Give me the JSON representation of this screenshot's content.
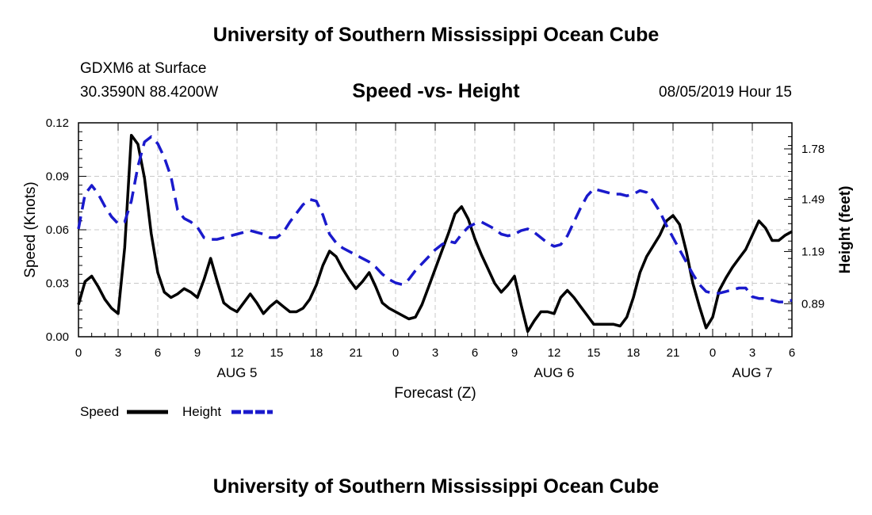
{
  "header": {
    "top_title": "University of Southern Mississippi Ocean Cube",
    "station": "GDXM6 at Surface",
    "coords": "30.3590N 88.4200W",
    "date": "08/05/2019 Hour 15",
    "bottom_title": "University of Southern Mississippi Ocean Cube"
  },
  "legend": {
    "speed_label": "Speed",
    "height_label": "Height"
  },
  "colors": {
    "speed": "#000000",
    "height": "#1a1acc",
    "grid": "#c8c8c8"
  },
  "chart_data": {
    "type": "line",
    "title": "Speed -vs- Height",
    "xlabel": "Forecast (Z)",
    "ylabel": "Speed (Knots)",
    "y2label": "Height (feet)",
    "xlim": [
      0,
      54
    ],
    "ylim": [
      0,
      0.12
    ],
    "y2lim": [
      0.7,
      1.93
    ],
    "x_ticks": [
      0,
      3,
      6,
      9,
      12,
      15,
      18,
      21,
      24,
      27,
      30,
      33,
      36,
      39,
      42,
      45,
      48,
      51,
      54
    ],
    "x_tick_labels": [
      "0",
      "3",
      "6",
      "9",
      "12",
      "15",
      "18",
      "21",
      "0",
      "3",
      "6",
      "9",
      "12",
      "15",
      "18",
      "21",
      "0",
      "3",
      "6"
    ],
    "y_ticks": [
      0.0,
      0.03,
      0.06,
      0.09,
      0.12
    ],
    "y_tick_labels": [
      "0.00",
      "0.03",
      "0.06",
      "0.09",
      "0.12"
    ],
    "y2_ticks": [
      0.89,
      1.19,
      1.49,
      1.78
    ],
    "y2_tick_labels": [
      "0.89",
      "1.19",
      "1.49",
      "1.78"
    ],
    "day_labels": [
      {
        "x": 12,
        "label": "AUG 5"
      },
      {
        "x": 36,
        "label": "AUG 6"
      },
      {
        "x": 51,
        "label": "AUG 7"
      }
    ],
    "series": [
      {
        "name": "Speed",
        "axis": "left",
        "style": "solid",
        "x": [
          0,
          0.5,
          1,
          1.5,
          2,
          2.5,
          3,
          3.5,
          4,
          4.5,
          5,
          5.5,
          6,
          6.5,
          7,
          7.5,
          8,
          8.5,
          9,
          9.5,
          10,
          10.5,
          11,
          11.5,
          12,
          12.5,
          13,
          13.5,
          14,
          14.5,
          15,
          15.5,
          16,
          16.5,
          17,
          17.5,
          18,
          18.5,
          19,
          19.5,
          20,
          20.5,
          21,
          21.5,
          22,
          22.5,
          23,
          23.5,
          24,
          24.5,
          25,
          25.5,
          26,
          26.5,
          27,
          27.5,
          28,
          28.5,
          29,
          29.5,
          30,
          30.5,
          31,
          31.5,
          32,
          32.5,
          33,
          33.5,
          34,
          34.5,
          35,
          35.5,
          36,
          36.5,
          37,
          37.5,
          38,
          38.5,
          39,
          39.5,
          40,
          40.5,
          41,
          41.5,
          42,
          42.5,
          43,
          43.5,
          44,
          44.5,
          45,
          45.5,
          46,
          46.5,
          47,
          47.5,
          48,
          48.5,
          49,
          49.5,
          50,
          50.5,
          51,
          51.5,
          52,
          52.5,
          53,
          53.5,
          54
        ],
        "values": [
          0.018,
          0.031,
          0.034,
          0.028,
          0.021,
          0.016,
          0.013,
          0.05,
          0.113,
          0.108,
          0.089,
          0.058,
          0.036,
          0.025,
          0.022,
          0.024,
          0.027,
          0.025,
          0.022,
          0.032,
          0.044,
          0.031,
          0.019,
          0.016,
          0.014,
          0.019,
          0.024,
          0.019,
          0.013,
          0.017,
          0.02,
          0.017,
          0.014,
          0.014,
          0.016,
          0.021,
          0.029,
          0.04,
          0.048,
          0.045,
          0.038,
          0.032,
          0.027,
          0.031,
          0.036,
          0.028,
          0.019,
          0.016,
          0.014,
          0.012,
          0.01,
          0.011,
          0.018,
          0.028,
          0.038,
          0.048,
          0.058,
          0.069,
          0.073,
          0.066,
          0.055,
          0.046,
          0.038,
          0.03,
          0.025,
          0.029,
          0.034,
          0.018,
          0.003,
          0.009,
          0.014,
          0.014,
          0.013,
          0.022,
          0.026,
          0.022,
          0.017,
          0.012,
          0.007,
          0.007,
          0.007,
          0.007,
          0.006,
          0.011,
          0.022,
          0.036,
          0.045,
          0.051,
          0.057,
          0.065,
          0.068,
          0.063,
          0.048,
          0.03,
          0.017,
          0.005,
          0.011,
          0.026,
          0.033,
          0.039,
          0.044,
          0.049,
          0.057,
          0.065,
          0.061,
          0.054,
          0.054,
          0.057,
          0.059
        ]
      },
      {
        "name": "Height",
        "axis": "right",
        "style": "dashed",
        "x": [
          0,
          0.5,
          1,
          1.5,
          2,
          2.5,
          3,
          3.5,
          4,
          4.5,
          5,
          5.5,
          6,
          6.5,
          7,
          7.5,
          8,
          8.5,
          9,
          9.5,
          10,
          10.5,
          11,
          11.5,
          12,
          12.5,
          13,
          13.5,
          14,
          14.5,
          15,
          15.5,
          16,
          16.5,
          17,
          17.5,
          18,
          18.5,
          19,
          19.5,
          20,
          20.5,
          21,
          21.5,
          22,
          22.5,
          23,
          23.5,
          24,
          24.5,
          25,
          25.5,
          26,
          26.5,
          27,
          27.5,
          28,
          28.5,
          29,
          29.5,
          30,
          30.5,
          31,
          31.5,
          32,
          32.5,
          33,
          33.5,
          34,
          34.5,
          35,
          35.5,
          36,
          36.5,
          37,
          37.5,
          38,
          38.5,
          39,
          39.5,
          40,
          40.5,
          41,
          41.5,
          42,
          42.5,
          43,
          43.5,
          44,
          44.5,
          45,
          45.5,
          46,
          46.5,
          47,
          47.5,
          48,
          48.5,
          49,
          49.5,
          50,
          50.5,
          51,
          51.5,
          52,
          52.5,
          53,
          53.5,
          54
        ],
        "values": [
          1.32,
          1.52,
          1.57,
          1.52,
          1.45,
          1.39,
          1.35,
          1.36,
          1.48,
          1.68,
          1.82,
          1.85,
          1.81,
          1.73,
          1.62,
          1.43,
          1.38,
          1.36,
          1.33,
          1.27,
          1.26,
          1.26,
          1.27,
          1.28,
          1.29,
          1.3,
          1.31,
          1.3,
          1.29,
          1.27,
          1.27,
          1.3,
          1.36,
          1.41,
          1.46,
          1.49,
          1.48,
          1.4,
          1.29,
          1.24,
          1.21,
          1.19,
          1.17,
          1.15,
          1.13,
          1.1,
          1.06,
          1.03,
          1.01,
          1.0,
          1.03,
          1.08,
          1.12,
          1.16,
          1.2,
          1.23,
          1.25,
          1.24,
          1.29,
          1.33,
          1.35,
          1.36,
          1.34,
          1.32,
          1.29,
          1.28,
          1.29,
          1.31,
          1.32,
          1.3,
          1.27,
          1.24,
          1.22,
          1.23,
          1.28,
          1.36,
          1.44,
          1.51,
          1.55,
          1.54,
          1.53,
          1.52,
          1.52,
          1.51,
          1.52,
          1.54,
          1.53,
          1.48,
          1.42,
          1.34,
          1.27,
          1.2,
          1.13,
          1.06,
          1.0,
          0.96,
          0.95,
          0.95,
          0.96,
          0.97,
          0.98,
          0.98,
          0.93,
          0.92,
          0.92,
          0.91,
          0.9,
          0.9,
          0.91
        ]
      }
    ]
  }
}
